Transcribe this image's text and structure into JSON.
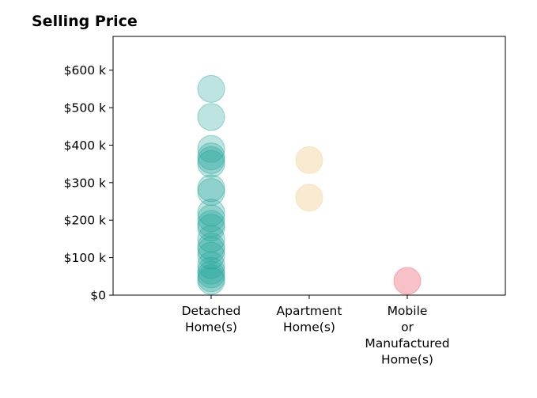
{
  "chart_data": {
    "type": "scatter",
    "title": "Selling Price",
    "xlabel": "",
    "ylabel": "",
    "categories": [
      "Detached\nHome(s)",
      "Apartment\nHome(s)",
      "Mobile\nor\nManufactured\nHome(s)"
    ],
    "ylim": [
      0,
      690000
    ],
    "yticks": [
      0,
      100000,
      200000,
      300000,
      400000,
      500000,
      600000
    ],
    "ytick_labels": [
      "$0",
      "$100 k",
      "$200 k",
      "$300 k",
      "$400 k",
      "$500 k",
      "$600 k"
    ],
    "grid": false,
    "series": [
      {
        "category": "Detached\nHome(s)",
        "color": "#26a69a",
        "opacity": 0.3,
        "values": [
          550000,
          475000,
          390000,
          370000,
          360000,
          350000,
          285000,
          275000,
          220000,
          205000,
          190000,
          180000,
          150000,
          130000,
          120000,
          105000,
          80000,
          65000,
          55000,
          45000,
          38000
        ]
      },
      {
        "category": "Apartment\nHome(s)",
        "color": "#f5deb3",
        "opacity": 0.6,
        "values": [
          360000,
          260000
        ]
      },
      {
        "category": "Mobile\nor\nManufactured\nHome(s)",
        "color": "#f28e9b",
        "opacity": 0.55,
        "values": [
          38000
        ]
      }
    ]
  }
}
